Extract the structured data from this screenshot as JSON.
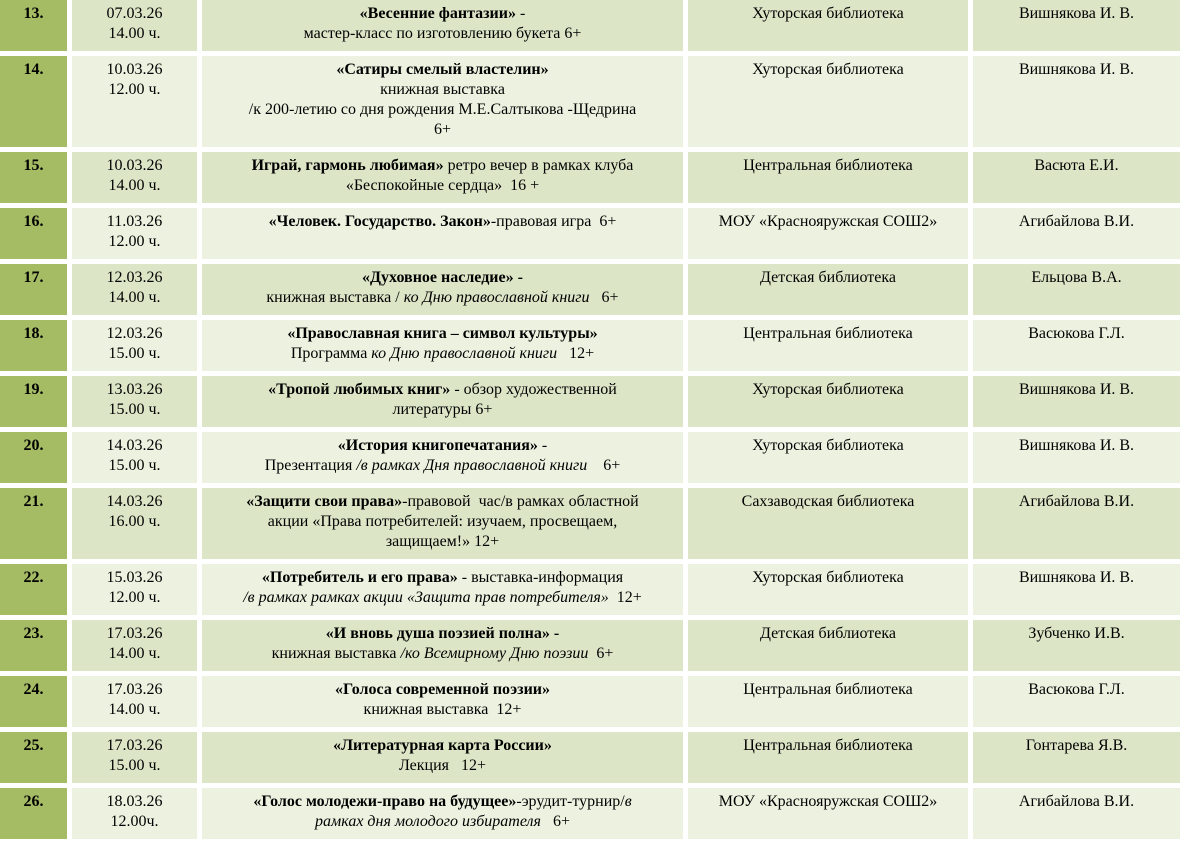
{
  "colors": {
    "number_column_bg": "#a5bb64",
    "row_shade_dark": "#dce6c7",
    "row_shade_light": "#edf2e0",
    "gridline": "#ffffff",
    "text": "#000000"
  },
  "table": {
    "rows": [
      {
        "num": "13.",
        "date": "07.03.26",
        "time": "14.00 ч.",
        "event": [
          {
            "t": "«Весенние фантазии»",
            "b": true
          },
          {
            "t": " -\nмастер-класс по изготовлению букета 6+"
          }
        ],
        "location": "Хуторская библиотека",
        "person": "Вишнякова И. В."
      },
      {
        "num": "14.",
        "date": "10.03.26",
        "time": "12.00 ч.",
        "event": [
          {
            "t": "«Сатиры смелый властелин»",
            "b": true
          },
          {
            "t": "\nкнижная выставка\n/к 200-летию со дня рождения М.Е.Салтыкова -Щедрина\n6+"
          }
        ],
        "location": "Хуторская библиотека",
        "person": "Вишнякова И. В."
      },
      {
        "num": "15.",
        "date": "10.03.26",
        "time": "14.00 ч.",
        "event": [
          {
            "t": "Играй, гармонь любимая»",
            "b": true
          },
          {
            "t": " ретро вечер в рамках клуба\n«Беспокойные сердца»  16 +"
          }
        ],
        "location": "Центральная библиотека",
        "person": "Васюта Е.И."
      },
      {
        "num": "16.",
        "date": "11.03.26",
        "time": "12.00 ч.",
        "event": [
          {
            "t": "«Человек. Государство. Закон»",
            "b": true
          },
          {
            "t": "-правовая игра  6+"
          }
        ],
        "location": "МОУ «Краснояружская СОШ2»",
        "person": "Агибайлова В.И."
      },
      {
        "num": "17.",
        "date": "12.03.26",
        "time": "14.00 ч.",
        "event": [
          {
            "t": "«Духовное наследие» -",
            "b": true
          },
          {
            "t": "\nкнижная выставка / "
          },
          {
            "t": "ко Дню православной книги",
            "i": true
          },
          {
            "t": "   6+"
          }
        ],
        "location": "Детская библиотека",
        "person": "Ельцова В.А."
      },
      {
        "num": "18.",
        "date": "12.03.26",
        "time": "15.00 ч.",
        "event": [
          {
            "t": "«Православная книга – символ культуры»",
            "b": true
          },
          {
            "t": "\nПрограмма "
          },
          {
            "t": "ко Дню православной книги",
            "i": true
          },
          {
            "t": "   12+"
          }
        ],
        "location": "Центральная библиотека",
        "person": "Васюкова Г.Л."
      },
      {
        "num": "19.",
        "date": "13.03.26",
        "time": "15.00 ч.",
        "event": [
          {
            "t": "«Тропой любимых книг»",
            "b": true
          },
          {
            "t": " - обзор художественной\nлитературы 6+"
          }
        ],
        "location": "Хуторская библиотека",
        "person": "Вишнякова И. В."
      },
      {
        "num": "20.",
        "date": "14.03.26",
        "time": "15.00 ч.",
        "event": [
          {
            "t": "«История книгопечатания»",
            "b": true
          },
          {
            "t": " -\nПрезентация "
          },
          {
            "t": "/в рамках Дня православной книги",
            "i": true
          },
          {
            "t": "    6+"
          }
        ],
        "location": "Хуторская библиотека",
        "person": "Вишнякова И. В."
      },
      {
        "num": "21.",
        "date": "14.03.26",
        "time": "16.00 ч.",
        "event": [
          {
            "t": "«Защити свои права»",
            "b": true
          },
          {
            "t": "-правовой  час/в рамках областной\nакции «Права потребителей: изучаем, просвещаем,\nзащищаем!» 12+"
          }
        ],
        "location": "Сахзаводская библиотека",
        "person": "Агибайлова В.И."
      },
      {
        "num": "22.",
        "date": "15.03.26",
        "time": "12.00 ч.",
        "event": [
          {
            "t": "«Потребитель и его права»",
            "b": true
          },
          {
            "t": " - выставка-информация\n"
          },
          {
            "t": "/в рамках рамках акции «Защита прав потребителя»",
            "i": true
          },
          {
            "t": "  12+"
          }
        ],
        "location": "Хуторская библиотека",
        "person": "Вишнякова И. В."
      },
      {
        "num": "23.",
        "date": "17.03.26",
        "time": "14.00 ч.",
        "event": [
          {
            "t": "«И вновь душа поэзией полна» -",
            "b": true
          },
          {
            "t": "\nкнижная выставка "
          },
          {
            "t": "/ко Всемирному Дню поэзии",
            "i": true
          },
          {
            "t": "  6+"
          }
        ],
        "location": "Детская библиотека",
        "person": "Зубченко И.В."
      },
      {
        "num": "24.",
        "date": "17.03.26",
        "time": "14.00 ч.",
        "event": [
          {
            "t": "«Голоса современной поэзии»",
            "b": true
          },
          {
            "t": "\nкнижная выставка  12+"
          }
        ],
        "location": "Центральная библиотека",
        "person": "Васюкова Г.Л."
      },
      {
        "num": "25.",
        "date": "17.03.26",
        "time": "15.00 ч.",
        "event": [
          {
            "t": "«Литературная карта России»",
            "b": true
          },
          {
            "t": "\nЛекция   12+"
          }
        ],
        "location": "Центральная библиотека",
        "person": "Гонтарева Я.В."
      },
      {
        "num": "26.",
        "date": "18.03.26",
        "time": "12.00ч.",
        "event": [
          {
            "t": "«Голос молодежи-право на будущее»",
            "b": true
          },
          {
            "t": "-эрудит-турнир/"
          },
          {
            "t": "в\nрамках дня молодого избирателя",
            "i": true
          },
          {
            "t": "   6+"
          }
        ],
        "location": "МОУ «Краснояружская СОШ2»",
        "person": "Агибайлова В.И."
      }
    ]
  }
}
